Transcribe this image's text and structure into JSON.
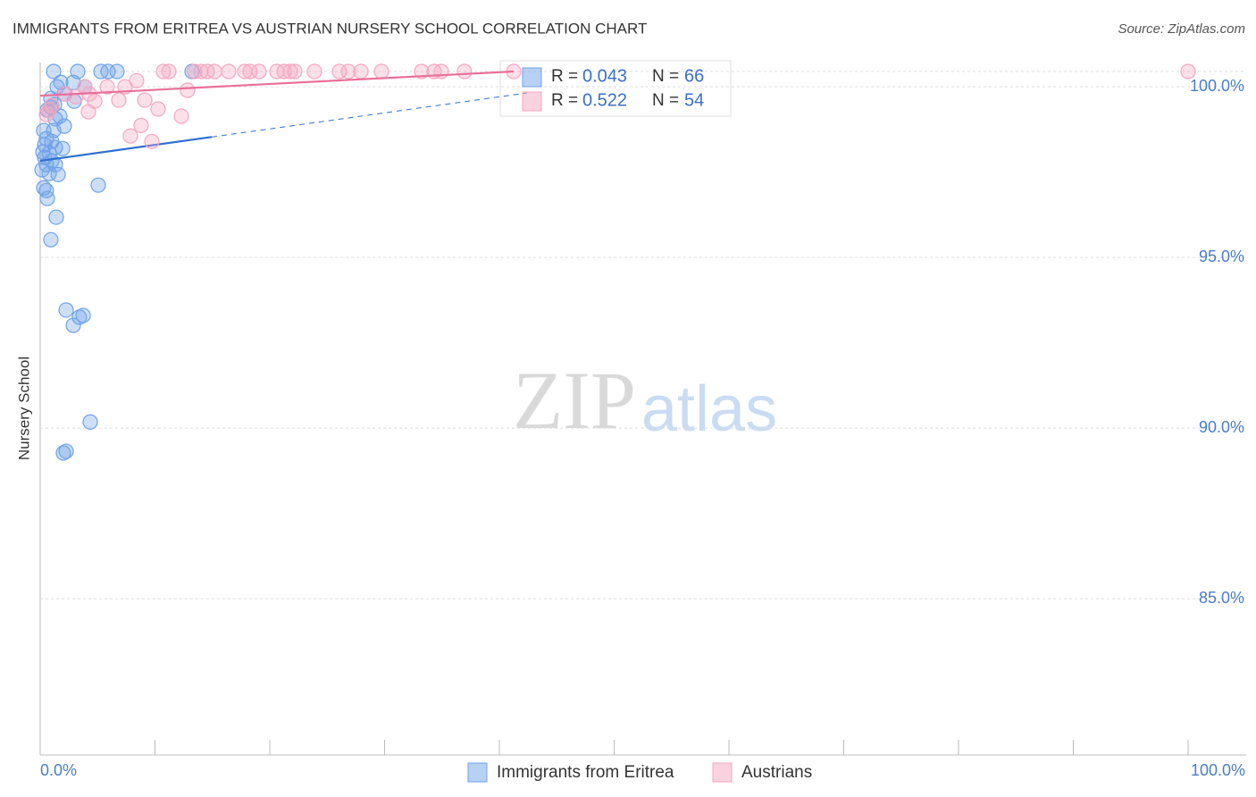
{
  "chart_data": {
    "type": "scatter",
    "title": "IMMIGRANTS FROM ERITREA VS AUSTRIAN NURSERY SCHOOL CORRELATION CHART",
    "source": "Source: ZipAtlas.com",
    "y_label": "Nursery School",
    "watermark": [
      "ZIP",
      "atlas"
    ],
    "r_label": "R =",
    "n_label": "N =",
    "xlim": [
      0,
      100
    ],
    "ylim": [
      80.42,
      100.45
    ],
    "xticks": [
      {
        "value": 0,
        "label": "0.0%"
      },
      {
        "value": 100,
        "label": "100.0%"
      }
    ],
    "x_minor_ticks": [
      10,
      20,
      30,
      40,
      50,
      60,
      70,
      80,
      90
    ],
    "yticks": [
      {
        "value": 100,
        "label": "100.0%"
      },
      {
        "value": 95,
        "label": "95.0%"
      },
      {
        "value": 90,
        "label": "90.0%"
      },
      {
        "value": 85,
        "label": "85.0%"
      }
    ],
    "grid": true,
    "series": [
      {
        "name": "Immigrants from Eritrea",
        "color": "#6fa3e8",
        "line_color": "#2f6fd0",
        "r": 0.043,
        "n": 66,
        "x": [
          1.17,
          3.27,
          5.91,
          6.69,
          5.29,
          13.23,
          1.79,
          2.88,
          1.48,
          3.89,
          2.1,
          0.93,
          2.96,
          1.25,
          0.93,
          0.62,
          1.71,
          1.32,
          2.1,
          1.17,
          0.31,
          0.54,
          1.01,
          0.39,
          1.32,
          1.95,
          0.23,
          0.78,
          0.39,
          1.01,
          0.54,
          1.32,
          0.16,
          0.78,
          1.56,
          0.31,
          0.54,
          0.62,
          5.06,
          1.4,
          0.93,
          2.26,
          3.74,
          3.42,
          2.88,
          4.36,
          2.26,
          2.02
        ],
        "values": [
          100.45,
          100.45,
          100.45,
          100.45,
          100.45,
          100.45,
          100.13,
          100.13,
          100.0,
          100.0,
          99.79,
          99.66,
          99.58,
          99.48,
          99.4,
          99.32,
          99.14,
          99.06,
          98.85,
          98.72,
          98.72,
          98.48,
          98.4,
          98.3,
          98.22,
          98.19,
          98.09,
          98.06,
          97.93,
          97.83,
          97.72,
          97.72,
          97.57,
          97.46,
          97.43,
          97.04,
          96.96,
          96.73,
          97.12,
          96.18,
          95.52,
          93.46,
          93.3,
          93.25,
          93.01,
          90.18,
          89.32,
          89.27
        ],
        "trend": [
          [
            0,
            97.83
          ],
          [
            14.94,
            98.53
          ]
        ],
        "trend_dashed": [
          [
            14.94,
            98.53
          ],
          [
            42.4,
            99.82
          ]
        ]
      },
      {
        "name": "Austrians",
        "color": "#f4a6c0",
        "line_color": "#e8709a",
        "r": 0.522,
        "n": 54,
        "x": [
          10.74,
          11.21,
          13.46,
          14.01,
          14.55,
          15.18,
          16.42,
          17.82,
          18.29,
          19.07,
          20.62,
          21.25,
          21.79,
          22.18,
          23.89,
          26.07,
          26.85,
          27.94,
          29.73,
          33.23,
          34.32,
          34.94,
          36.96,
          41.25,
          100,
          8.4,
          3.89,
          5.84,
          7.39,
          2.18,
          4.28,
          9.11,
          12.84,
          6.85,
          4.75,
          1.01,
          0.78,
          10.27,
          4.2,
          12.3,
          8.79,
          7.86,
          9.73,
          0.54,
          3.11
        ],
        "values": [
          100.45,
          100.45,
          100.45,
          100.45,
          100.45,
          100.45,
          100.45,
          100.45,
          100.45,
          100.45,
          100.45,
          100.45,
          100.45,
          100.45,
          100.45,
          100.45,
          100.45,
          100.45,
          100.45,
          100.45,
          100.45,
          100.45,
          100.45,
          100.45,
          100.45,
          100.18,
          100.0,
          100.0,
          100.0,
          99.79,
          99.79,
          99.61,
          99.9,
          99.61,
          99.58,
          99.45,
          99.32,
          99.35,
          99.27,
          99.14,
          98.87,
          98.56,
          98.4,
          99.19,
          99.71
        ],
        "trend": [
          [
            0,
            99.74
          ],
          [
            41.25,
            100.45
          ]
        ]
      }
    ]
  }
}
